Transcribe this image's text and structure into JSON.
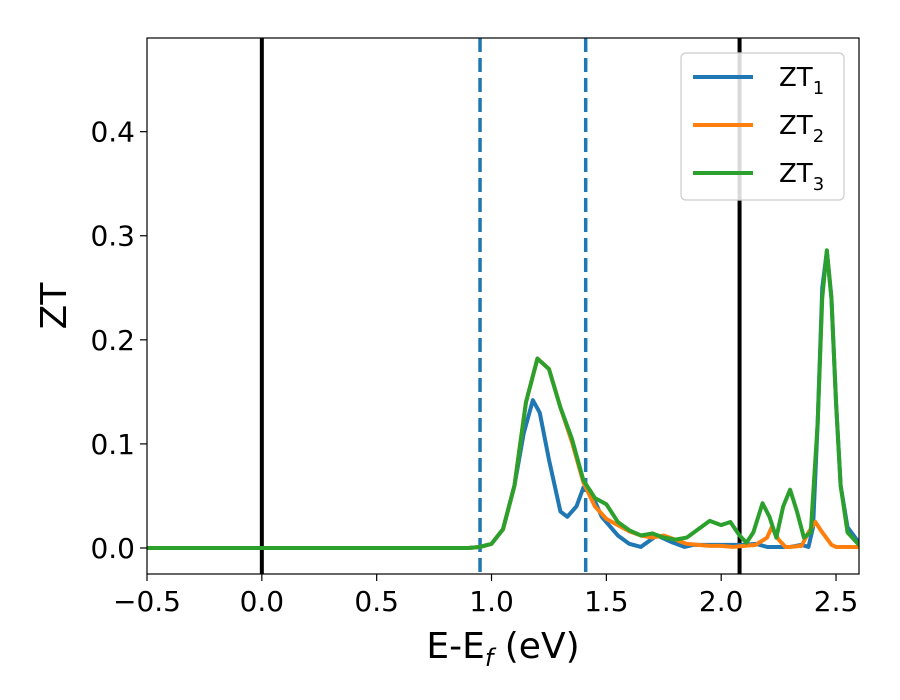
{
  "chart_data": {
    "type": "line",
    "xlabel": {
      "main": "E-E",
      "sub": "f",
      "tail": " (eV)"
    },
    "ylabel": "ZT",
    "xlim": [
      -0.5,
      2.6
    ],
    "ylim": [
      -0.025,
      0.49
    ],
    "x_ticks": [
      -0.5,
      0.0,
      0.5,
      1.0,
      1.5,
      2.0,
      2.5
    ],
    "x_tick_labels": [
      "−0.5",
      "0.0",
      "0.5",
      "1.0",
      "1.5",
      "2.0",
      "2.5"
    ],
    "y_ticks": [
      0.0,
      0.1,
      0.2,
      0.3,
      0.4
    ],
    "y_tick_labels": [
      "0.0",
      "0.1",
      "0.2",
      "0.3",
      "0.4"
    ],
    "legend_position": "top-right",
    "vertical_lines": [
      {
        "x": 0.0,
        "style": "solid",
        "color": "#000000"
      },
      {
        "x": 2.08,
        "style": "solid",
        "color": "#000000"
      },
      {
        "x": 0.95,
        "style": "dashed",
        "color": "#1f77b4"
      },
      {
        "x": 1.41,
        "style": "dashed",
        "color": "#1f77b4"
      }
    ],
    "series": [
      {
        "name": "ZT",
        "sub": "1",
        "color": "#1f77b4",
        "points": [
          [
            -0.5,
            0
          ],
          [
            0.9,
            0
          ],
          [
            0.95,
            0.001
          ],
          [
            1.0,
            0.004
          ],
          [
            1.05,
            0.018
          ],
          [
            1.1,
            0.06
          ],
          [
            1.14,
            0.11
          ],
          [
            1.18,
            0.142
          ],
          [
            1.21,
            0.13
          ],
          [
            1.25,
            0.085
          ],
          [
            1.3,
            0.035
          ],
          [
            1.33,
            0.03
          ],
          [
            1.37,
            0.04
          ],
          [
            1.4,
            0.058
          ],
          [
            1.43,
            0.055
          ],
          [
            1.48,
            0.03
          ],
          [
            1.55,
            0.012
          ],
          [
            1.6,
            0.004
          ],
          [
            1.65,
            0.001
          ],
          [
            1.72,
            0.012
          ],
          [
            1.78,
            0.006
          ],
          [
            1.84,
            0.001
          ],
          [
            1.88,
            0.003
          ],
          [
            1.95,
            0.003
          ],
          [
            2.0,
            0.003
          ],
          [
            2.05,
            0.003
          ],
          [
            2.1,
            0.003
          ],
          [
            2.15,
            0.004
          ],
          [
            2.2,
            0.001
          ],
          [
            2.25,
            0.001
          ],
          [
            2.3,
            0.001
          ],
          [
            2.35,
            0.003
          ],
          [
            2.38,
            0.001
          ],
          [
            2.4,
            0.02
          ],
          [
            2.42,
            0.12
          ],
          [
            2.44,
            0.25
          ],
          [
            2.46,
            0.285
          ],
          [
            2.48,
            0.24
          ],
          [
            2.5,
            0.14
          ],
          [
            2.52,
            0.06
          ],
          [
            2.55,
            0.02
          ],
          [
            2.6,
            0.005
          ]
        ]
      },
      {
        "name": "ZT",
        "sub": "2",
        "color": "#ff7f0e",
        "points": [
          [
            -0.5,
            0
          ],
          [
            0.9,
            0
          ],
          [
            0.95,
            0.001
          ],
          [
            1.0,
            0.004
          ],
          [
            1.05,
            0.018
          ],
          [
            1.1,
            0.06
          ],
          [
            1.15,
            0.14
          ],
          [
            1.2,
            0.182
          ],
          [
            1.25,
            0.172
          ],
          [
            1.3,
            0.135
          ],
          [
            1.35,
            0.102
          ],
          [
            1.4,
            0.063
          ],
          [
            1.45,
            0.04
          ],
          [
            1.5,
            0.028
          ],
          [
            1.55,
            0.022
          ],
          [
            1.6,
            0.016
          ],
          [
            1.65,
            0.012
          ],
          [
            1.7,
            0.01
          ],
          [
            1.75,
            0.012
          ],
          [
            1.8,
            0.008
          ],
          [
            1.85,
            0.004
          ],
          [
            1.9,
            0.003
          ],
          [
            1.95,
            0.002
          ],
          [
            2.0,
            0.002
          ],
          [
            2.05,
            0.001
          ],
          [
            2.1,
            0.002
          ],
          [
            2.15,
            0.003
          ],
          [
            2.2,
            0.01
          ],
          [
            2.22,
            0.02
          ],
          [
            2.25,
            0.008
          ],
          [
            2.28,
            0.001
          ],
          [
            2.3,
            0.001
          ],
          [
            2.35,
            0.002
          ],
          [
            2.38,
            0.015
          ],
          [
            2.41,
            0.025
          ],
          [
            2.44,
            0.015
          ],
          [
            2.48,
            0.003
          ],
          [
            2.5,
            0.001
          ],
          [
            2.6,
            0.001
          ]
        ]
      },
      {
        "name": "ZT",
        "sub": "3",
        "color": "#2ca02c",
        "points": [
          [
            -0.5,
            0
          ],
          [
            0.9,
            0
          ],
          [
            0.95,
            0.001
          ],
          [
            1.0,
            0.004
          ],
          [
            1.05,
            0.018
          ],
          [
            1.1,
            0.06
          ],
          [
            1.15,
            0.14
          ],
          [
            1.2,
            0.182
          ],
          [
            1.25,
            0.172
          ],
          [
            1.3,
            0.135
          ],
          [
            1.35,
            0.105
          ],
          [
            1.4,
            0.065
          ],
          [
            1.45,
            0.048
          ],
          [
            1.5,
            0.042
          ],
          [
            1.55,
            0.025
          ],
          [
            1.6,
            0.017
          ],
          [
            1.65,
            0.012
          ],
          [
            1.7,
            0.014
          ],
          [
            1.75,
            0.01
          ],
          [
            1.8,
            0.008
          ],
          [
            1.85,
            0.01
          ],
          [
            1.9,
            0.018
          ],
          [
            1.95,
            0.026
          ],
          [
            2.0,
            0.022
          ],
          [
            2.04,
            0.025
          ],
          [
            2.08,
            0.012
          ],
          [
            2.11,
            0.005
          ],
          [
            2.14,
            0.015
          ],
          [
            2.18,
            0.043
          ],
          [
            2.21,
            0.03
          ],
          [
            2.24,
            0.01
          ],
          [
            2.27,
            0.04
          ],
          [
            2.3,
            0.056
          ],
          [
            2.33,
            0.035
          ],
          [
            2.36,
            0.01
          ],
          [
            2.39,
            0.015
          ],
          [
            2.42,
            0.12
          ],
          [
            2.44,
            0.24
          ],
          [
            2.46,
            0.286
          ],
          [
            2.48,
            0.24
          ],
          [
            2.5,
            0.14
          ],
          [
            2.52,
            0.06
          ],
          [
            2.55,
            0.015
          ],
          [
            2.6,
            0.003
          ]
        ]
      }
    ]
  }
}
